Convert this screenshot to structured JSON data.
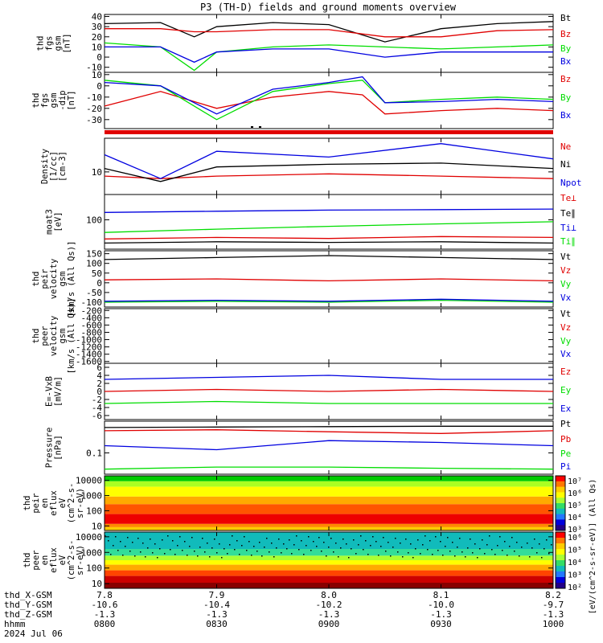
{
  "title": "P3 (TH-D) fields and ground moments overview",
  "colors": {
    "black": "#000000",
    "red": "#e00000",
    "green": "#00dd00",
    "blue": "#0000e0"
  },
  "chart_data": [
    {
      "type": "line",
      "ylabel": [
        "thd",
        "fgs",
        "gsm",
        "[nT]"
      ],
      "yticks": [
        "40",
        "30",
        "20",
        "10",
        "0",
        "-10"
      ],
      "ylim": [
        -15,
        42
      ],
      "series": [
        {
          "name": "Bt",
          "color": "#000000",
          "x": [
            7.8,
            7.85,
            7.88,
            7.9,
            7.95,
            8.0,
            8.05,
            8.1,
            8.15,
            8.2
          ],
          "y": [
            33,
            34,
            20,
            30,
            34,
            32,
            15,
            28,
            33,
            35
          ]
        },
        {
          "name": "Bz",
          "color": "#e00000",
          "x": [
            7.8,
            7.85,
            7.88,
            7.9,
            7.95,
            8.0,
            8.05,
            8.1,
            8.15,
            8.2
          ],
          "y": [
            28,
            28,
            25,
            25,
            27,
            27,
            20,
            20,
            26,
            27
          ]
        },
        {
          "name": "By",
          "color": "#00dd00",
          "x": [
            7.8,
            7.85,
            7.88,
            7.9,
            7.95,
            8.0,
            8.05,
            8.1,
            8.15,
            8.2
          ],
          "y": [
            14,
            10,
            -13,
            5,
            10,
            12,
            10,
            8,
            10,
            12
          ]
        },
        {
          "name": "Bx",
          "color": "#0000e0",
          "x": [
            7.8,
            7.85,
            7.88,
            7.9,
            7.95,
            8.0,
            8.05,
            8.1,
            8.15,
            8.2
          ],
          "y": [
            10,
            10,
            -5,
            5,
            8,
            8,
            0,
            5,
            5,
            5
          ]
        }
      ]
    },
    {
      "type": "line",
      "ylabel": [
        "thd",
        "fgs",
        "gsm",
        "-dip",
        "[nT]"
      ],
      "yticks": [
        "10",
        "0",
        "-10",
        "-20",
        "-30"
      ],
      "ylim": [
        -38,
        12
      ],
      "series": [
        {
          "name": "Bz",
          "color": "#e00000",
          "x": [
            7.8,
            7.85,
            7.9,
            7.95,
            8.0,
            8.03,
            8.05,
            8.1,
            8.15,
            8.2
          ],
          "y": [
            -18,
            -5,
            -20,
            -10,
            -5,
            -8,
            -25,
            -22,
            -20,
            -22
          ]
        },
        {
          "name": "By",
          "color": "#00dd00",
          "x": [
            7.8,
            7.85,
            7.9,
            7.95,
            8.0,
            8.03,
            8.05,
            8.1,
            8.15,
            8.2
          ],
          "y": [
            5,
            0,
            -30,
            -5,
            2,
            5,
            -15,
            -12,
            -10,
            -12
          ]
        },
        {
          "name": "Bx",
          "color": "#0000e0",
          "x": [
            7.8,
            7.85,
            7.9,
            7.95,
            8.0,
            8.03,
            8.05,
            8.1,
            8.15,
            8.2
          ],
          "y": [
            3,
            0,
            -25,
            -3,
            3,
            8,
            -15,
            -14,
            -12,
            -14
          ]
        }
      ]
    },
    {
      "type": "line",
      "ylabel": [
        "Density",
        "[1/cc]",
        "[cm-3]"
      ],
      "yticks": [
        "10"
      ],
      "ylim": [
        3,
        60
      ],
      "yscale": "log",
      "series": [
        {
          "name": "Ne",
          "color": "#e00000",
          "x": [
            7.8,
            7.85,
            7.9,
            8.0,
            8.1,
            8.2
          ],
          "y": [
            8,
            7,
            8,
            9,
            8,
            7
          ]
        },
        {
          "name": "Ni",
          "color": "#000000",
          "x": [
            7.8,
            7.85,
            7.9,
            8.0,
            8.1,
            8.2
          ],
          "y": [
            12,
            6,
            13,
            15,
            16,
            12
          ]
        },
        {
          "name": "Npot",
          "color": "#0000e0",
          "x": [
            7.8,
            7.85,
            7.9,
            8.0,
            8.1,
            8.2
          ],
          "y": [
            25,
            7,
            30,
            22,
            45,
            20
          ]
        }
      ]
    },
    {
      "type": "line",
      "ylabel": [
        "moat3",
        "[eV]"
      ],
      "yticks": [
        "100"
      ],
      "ylim": [
        20,
        400
      ],
      "yscale": "log",
      "series": [
        {
          "name": "Te⊥",
          "color": "#e00000",
          "x": [
            7.8,
            7.9,
            8.0,
            8.1,
            8.2
          ],
          "y": [
            35,
            38,
            36,
            40,
            38
          ]
        },
        {
          "name": "Te∥",
          "color": "#000000",
          "x": [
            7.8,
            7.9,
            8.0,
            8.1,
            8.2
          ],
          "y": [
            28,
            30,
            29,
            30,
            28
          ]
        },
        {
          "name": "Ti⊥",
          "color": "#0000e0",
          "x": [
            7.8,
            7.9,
            8.0,
            8.1,
            8.2
          ],
          "y": [
            150,
            160,
            170,
            175,
            180
          ]
        },
        {
          "name": "Ti∥",
          "color": "#00dd00",
          "x": [
            7.8,
            7.9,
            8.0,
            8.1,
            8.2
          ],
          "y": [
            50,
            60,
            70,
            80,
            90
          ]
        }
      ]
    },
    {
      "type": "line",
      "ylabel": [
        "thd",
        "peir",
        "velocity",
        "gsm",
        "[km/s (All Qs)]"
      ],
      "yticks": [
        "150",
        "100",
        "50",
        "0",
        "-50",
        "-100"
      ],
      "ylim": [
        -125,
        165
      ],
      "series": [
        {
          "name": "Vt",
          "color": "#000000",
          "x": [
            7.8,
            7.9,
            8.0,
            8.1,
            8.2
          ],
          "y": [
            120,
            130,
            140,
            130,
            120
          ]
        },
        {
          "name": "Vz",
          "color": "#e00000",
          "x": [
            7.8,
            7.9,
            8.0,
            8.1,
            8.2
          ],
          "y": [
            15,
            20,
            10,
            20,
            10
          ]
        },
        {
          "name": "Vy",
          "color": "#00dd00",
          "x": [
            7.8,
            7.9,
            8.0,
            8.1,
            8.2
          ],
          "y": [
            -100,
            -95,
            -100,
            -90,
            -100
          ]
        },
        {
          "name": "Vx",
          "color": "#0000e0",
          "x": [
            7.8,
            7.9,
            8.0,
            8.1,
            8.2
          ],
          "y": [
            -95,
            -90,
            -95,
            -85,
            -95
          ]
        }
      ]
    },
    {
      "type": "line",
      "ylabel": [
        "thd",
        "peer",
        "velocity",
        "gsm",
        "[km/s (All Qs)]"
      ],
      "yticks": [
        "-200",
        "-400",
        "-600",
        "-800",
        "-1000",
        "-1200",
        "-1400",
        "-1600"
      ],
      "ylim": [
        -1650,
        -150
      ],
      "series": [
        {
          "name": "Vt",
          "color": "#000000",
          "x": [],
          "y": []
        },
        {
          "name": "Vz",
          "color": "#e00000",
          "x": [],
          "y": []
        },
        {
          "name": "Vy",
          "color": "#00dd00",
          "x": [],
          "y": []
        },
        {
          "name": "Vx",
          "color": "#0000e0",
          "x": [],
          "y": []
        }
      ]
    },
    {
      "type": "line",
      "ylabel": [
        "E=-VxB",
        "[mV/m]"
      ],
      "yticks": [
        "6",
        "4",
        "2",
        "0",
        "-2",
        "-4",
        "-6"
      ],
      "ylim": [
        -7,
        7
      ],
      "series": [
        {
          "name": "Ez",
          "color": "#e00000",
          "x": [
            7.8,
            7.9,
            8.0,
            8.1,
            8.2
          ],
          "y": [
            0,
            0.5,
            0,
            0.5,
            0
          ]
        },
        {
          "name": "Ey",
          "color": "#00dd00",
          "x": [
            7.8,
            7.9,
            8.0,
            8.1,
            8.2
          ],
          "y": [
            -3,
            -2.5,
            -3,
            -3,
            -3
          ]
        },
        {
          "name": "Ex",
          "color": "#0000e0",
          "x": [
            7.8,
            7.9,
            8.0,
            8.1,
            8.2
          ],
          "y": [
            3,
            3.5,
            4,
            3,
            3
          ]
        }
      ]
    },
    {
      "type": "line",
      "ylabel": [
        "Pressure",
        "[nPa]"
      ],
      "yticks": [
        "0.1"
      ],
      "ylim": [
        0.03,
        0.6
      ],
      "yscale": "log",
      "series": [
        {
          "name": "Pt",
          "color": "#000000",
          "x": [
            7.8,
            7.9,
            8.0,
            8.1,
            8.2
          ],
          "y": [
            0.42,
            0.43,
            0.44,
            0.45,
            0.45
          ]
        },
        {
          "name": "Pb",
          "color": "#e00000",
          "x": [
            7.8,
            7.9,
            8.0,
            8.1,
            8.2
          ],
          "y": [
            0.35,
            0.37,
            0.33,
            0.3,
            0.35
          ]
        },
        {
          "name": "Pe",
          "color": "#00dd00",
          "x": [
            7.8,
            7.9,
            8.0,
            8.1,
            8.2
          ],
          "y": [
            0.04,
            0.045,
            0.045,
            0.042,
            0.04
          ]
        },
        {
          "name": "Pi",
          "color": "#0000e0",
          "x": [
            7.8,
            7.9,
            8.0,
            8.1,
            8.2
          ],
          "y": [
            0.15,
            0.12,
            0.2,
            0.18,
            0.15
          ]
        }
      ]
    },
    {
      "type": "heatmap",
      "ylabel": [
        "thd",
        "peir",
        "en",
        "eflux",
        "eV",
        "(cm^2-s-",
        "sr-eV)"
      ],
      "yticks": [
        "10000",
        "1000",
        "100",
        "10"
      ],
      "ylim": [
        5,
        20000
      ],
      "yscale": "log"
    },
    {
      "type": "heatmap",
      "ylabel": [
        "thd",
        "peer",
        "en",
        "eflux",
        "eV",
        "(cm^2-s-",
        "sr-eV)"
      ],
      "yticks": [
        "10000",
        "1000",
        "100",
        "10"
      ],
      "ylim": [
        5,
        20000
      ],
      "yscale": "log"
    }
  ],
  "colorbars": [
    {
      "ticks": [
        "10⁷",
        "10⁶",
        "10⁵",
        "10⁴",
        "10³"
      ]
    },
    {
      "ticks": [
        "10⁶",
        "10⁵",
        "10⁴",
        "10³",
        "10²"
      ]
    }
  ],
  "colorbar_label": "[eV/(cm^2-s-sr-eV)] (All Qs)",
  "x_axis": {
    "tick_rows": [
      {
        "label": "thd_X-GSM",
        "values": [
          "7.8",
          "7.9",
          "8.0",
          "8.1",
          "8.2"
        ]
      },
      {
        "label": "thd_Y-GSM",
        "values": [
          "-10.6",
          "-10.4",
          "-10.2",
          "-10.0",
          "-9.7"
        ]
      },
      {
        "label": "thd_Z-GSM",
        "values": [
          "-1.3",
          "-1.3",
          "-1.3",
          "-1.3",
          "-1.3"
        ]
      },
      {
        "label": "hhmm",
        "values": [
          "0800",
          "0830",
          "0900",
          "0930",
          "1000"
        ]
      }
    ],
    "date": "2024 Jul 06"
  }
}
